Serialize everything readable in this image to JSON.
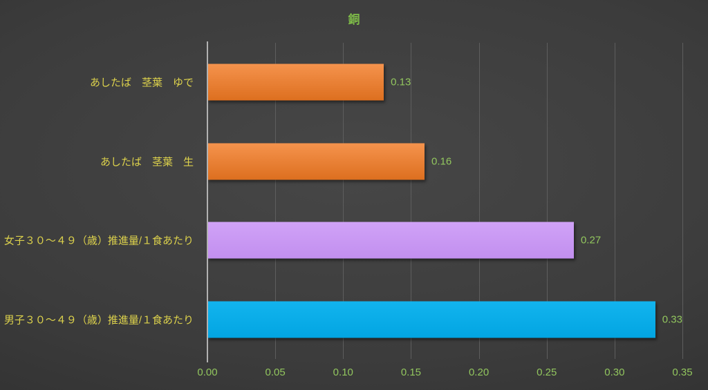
{
  "chart_data": {
    "type": "bar",
    "orientation": "horizontal",
    "title": "銅",
    "categories": [
      "あしたば　茎葉　ゆで",
      "あしたば　茎葉　生",
      "女子３０〜４９（歳）推進量/１食あたり",
      "男子３０〜４９（歳）推進量/１食あたり"
    ],
    "values": [
      0.13,
      0.16,
      0.27,
      0.33
    ],
    "data_labels": [
      "0.13",
      "0.16",
      "0.27",
      "0.33"
    ],
    "bar_colors": [
      {
        "top": "#f5934d",
        "bottom": "#dd6f1f"
      },
      {
        "top": "#f5934d",
        "bottom": "#dd6f1f"
      },
      {
        "top": "#d0a2f7",
        "bottom": "#c28fef"
      },
      {
        "top": "#12b4ee",
        "bottom": "#02a5e2"
      }
    ],
    "xlabel": "",
    "ylabel": "",
    "xlim": [
      0,
      0.35
    ],
    "x_ticks": [
      "0.00",
      "0.05",
      "0.10",
      "0.15",
      "0.20",
      "0.25",
      "0.30",
      "0.35"
    ],
    "grid": true,
    "legend_position": "none",
    "colors": {
      "title": "#7db948",
      "tick_label": "#92c65e",
      "value_label": "#92c65e",
      "category_label": "#ddd24c",
      "axis_line": "#b2b2b2",
      "gridline": "#5e5e5e",
      "background_center": "#474747",
      "background_edge": "#262626"
    }
  }
}
